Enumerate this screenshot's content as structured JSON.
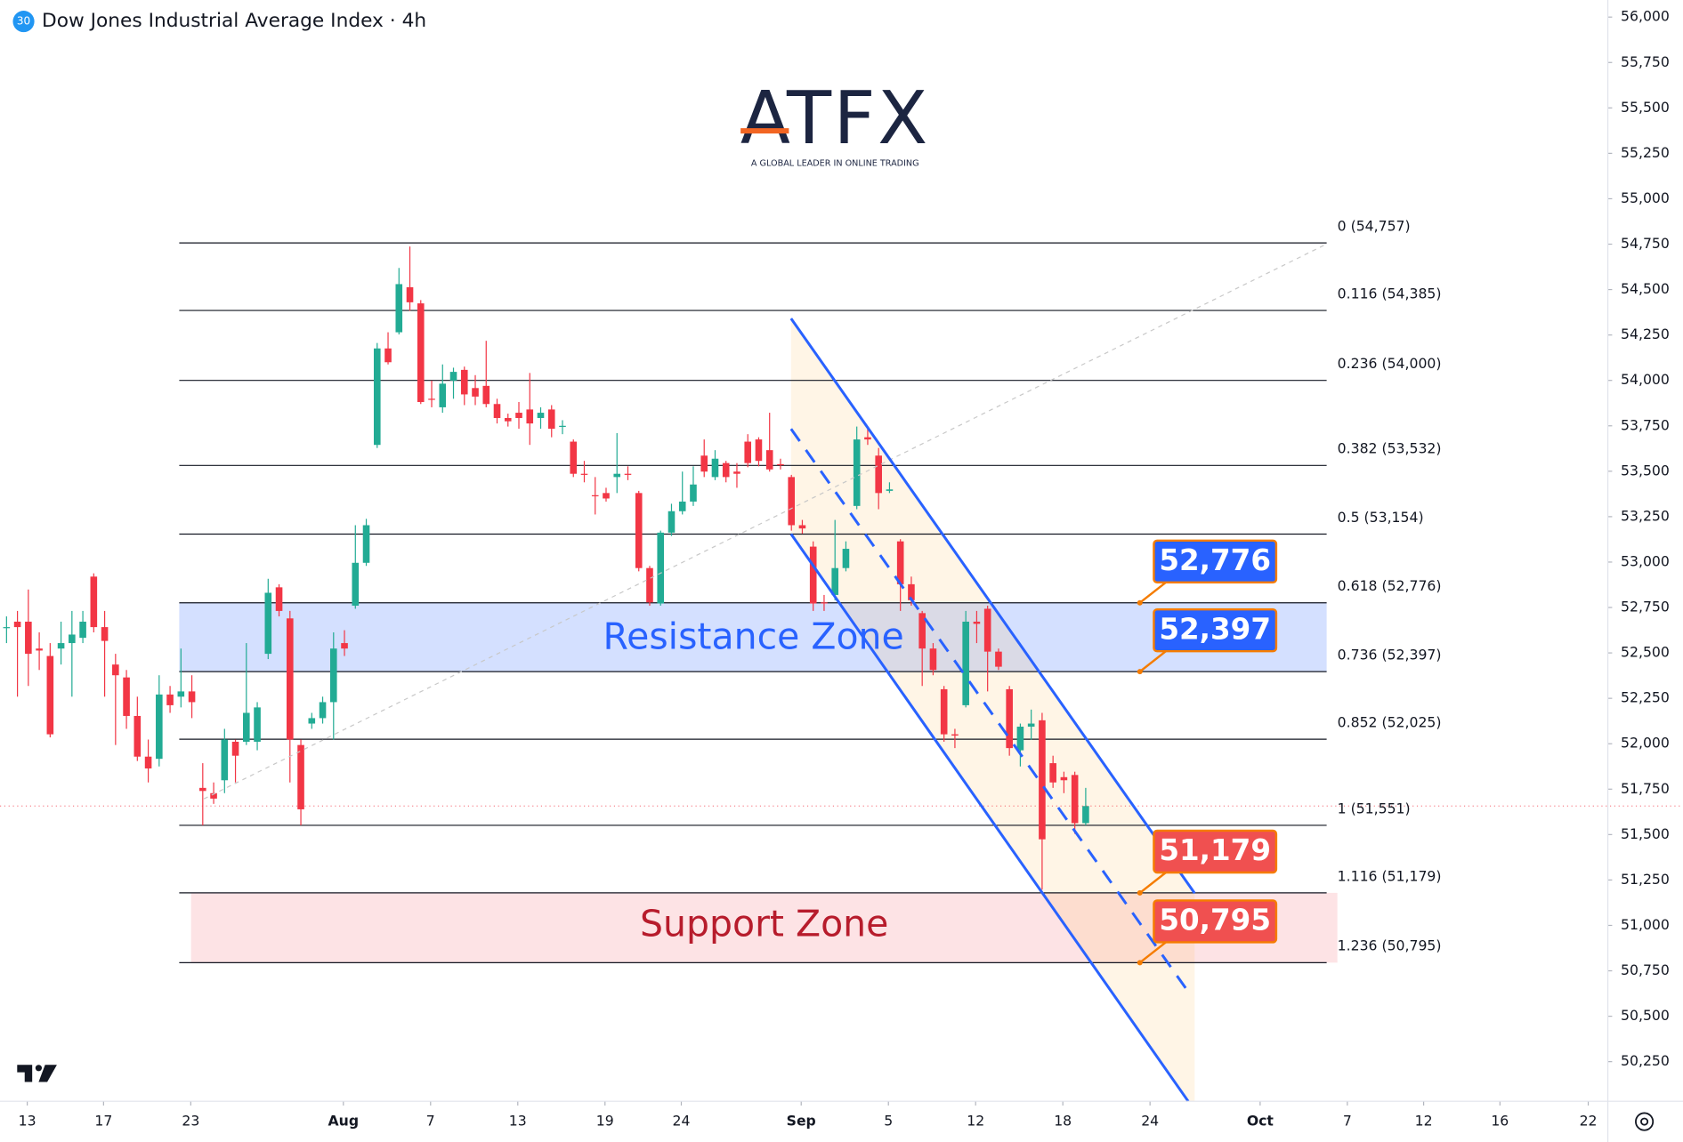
{
  "chart_data": {
    "type": "candlestick",
    "title": "Dow Jones Industrial Average Index · 4h",
    "symbol_badge": "30",
    "brand": "ATFX",
    "brand_tagline": "A GLOBAL LEADER IN ONLINE TRADING",
    "up_color": "#22ab94",
    "down_color": "#f23645",
    "open": [
      52642,
      52672,
      52672,
      52524,
      52483,
      52524,
      52554,
      52583,
      52920,
      52642,
      52436,
      52365,
      52153,
      51929,
      51917,
      52271,
      52259,
      52288,
      51757,
      51728,
      51799,
      52011,
      52011,
      52011,
      52495,
      52861,
      52690,
      51993,
      52111,
      52141,
      52229,
      52554,
      52760,
      52996,
      53645,
      54176,
      54265,
      54513,
      54424,
      53899,
      53852,
      53999,
      54058,
      53958,
      53970,
      53870,
      53793,
      53822,
      53840,
      53793,
      53840,
      53746,
      53663,
      53486,
      53368,
      53380,
      53468,
      53486,
      53380,
      52967,
      52772,
      53162,
      53280,
      53333,
      53586,
      53468,
      53545,
      53498,
      53663,
      53675,
      53616,
      53539,
      53468,
      53203,
      53085,
      52778,
      52819,
      52967,
      53309,
      53687,
      53586,
      53392,
      53114,
      52878,
      52719,
      52524,
      52300,
      52052,
      52212,
      52672,
      52743,
      52507,
      52300,
      51964,
      52094,
      52129,
      51893,
      51816,
      51828,
      51563
    ],
    "high": [
      52701,
      52731,
      52849,
      52613,
      52554,
      52672,
      52731,
      52731,
      52938,
      52731,
      52495,
      52406,
      52259,
      52023,
      52377,
      52318,
      52524,
      52377,
      51893,
      51787,
      52082,
      52023,
      52554,
      52229,
      52908,
      52878,
      52731,
      52023,
      52170,
      52259,
      52613,
      52625,
      53203,
      53238,
      54206,
      54265,
      54619,
      54737,
      54442,
      53999,
      54088,
      54070,
      54076,
      54029,
      54218,
      53899,
      53817,
      53881,
      54041,
      53852,
      53864,
      53781,
      53675,
      53557,
      53468,
      53409,
      53710,
      53527,
      53392,
      52979,
      53173,
      53321,
      53498,
      53527,
      53675,
      53616,
      53557,
      53545,
      53704,
      53687,
      53822,
      53569,
      53480,
      53232,
      53114,
      52819,
      53232,
      53114,
      53746,
      53734,
      53628,
      53439,
      53126,
      52920,
      52731,
      52554,
      52318,
      52082,
      52731,
      52731,
      52760,
      52524,
      52318,
      52111,
      52188,
      52170,
      51934,
      51846,
      51846,
      51757
    ],
    "low": [
      52554,
      52259,
      52318,
      52406,
      52035,
      52436,
      52259,
      52554,
      52613,
      52259,
      51993,
      52082,
      51905,
      51787,
      51875,
      52170,
      52200,
      52141,
      51551,
      51669,
      51728,
      51787,
      51993,
      51964,
      52466,
      52701,
      51787,
      51551,
      52082,
      52111,
      52023,
      52483,
      52743,
      52979,
      53628,
      54088,
      54253,
      54383,
      53870,
      53852,
      53822,
      53899,
      53864,
      53864,
      53852,
      53763,
      53746,
      53734,
      53645,
      53734,
      53687,
      53704,
      53468,
      53439,
      53262,
      53333,
      53380,
      53451,
      52949,
      52760,
      52760,
      53144,
      53262,
      53309,
      53468,
      53451,
      53439,
      53409,
      53522,
      53527,
      53498,
      53510,
      53173,
      53156,
      52731,
      52731,
      52790,
      52949,
      53291,
      53645,
      53291,
      53380,
      52731,
      52760,
      52318,
      52377,
      52011,
      51976,
      52200,
      52554,
      52288,
      52406,
      51934,
      51875,
      52023,
      51197,
      51757,
      51728,
      51504,
      51551
    ],
    "close": [
      52642,
      52642,
      52495,
      52513,
      52052,
      52554,
      52601,
      52672,
      52642,
      52566,
      52377,
      52153,
      51929,
      51864,
      52271,
      52212,
      52288,
      52229,
      51740,
      51698,
      52023,
      51934,
      52170,
      52200,
      52831,
      52731,
      52023,
      51639,
      52141,
      52229,
      52524,
      52524,
      52996,
      53203,
      54176,
      54100,
      54530,
      54430,
      53881,
      53893,
      53982,
      54047,
      53923,
      53911,
      53870,
      53793,
      53775,
      53793,
      53763,
      53822,
      53734,
      53750,
      53486,
      53480,
      53362,
      53350,
      53486,
      53480,
      52967,
      52778,
      53162,
      53280,
      53333,
      53427,
      53498,
      53569,
      53468,
      53486,
      53545,
      53557,
      53510,
      53533,
      53203,
      53185,
      52772,
      52775,
      52967,
      53073,
      53675,
      53675,
      53380,
      53400,
      52878,
      52790,
      52524,
      52406,
      52052,
      52045,
      52672,
      52660,
      52507,
      52424,
      51976,
      52094,
      52111,
      51474,
      51787,
      51799,
      51563,
      51657
    ],
    "ylim": [
      50032,
      56094
    ],
    "yticks": [
      {
        "value": 50250,
        "label": "50,250"
      },
      {
        "value": 50500,
        "label": "50,500"
      },
      {
        "value": 50750,
        "label": "50,750"
      },
      {
        "value": 51000,
        "label": "51,000"
      },
      {
        "value": 51250,
        "label": "51,250"
      },
      {
        "value": 51500,
        "label": "51,500"
      },
      {
        "value": 51750,
        "label": "51,750"
      },
      {
        "value": 52000,
        "label": "52,000"
      },
      {
        "value": 52250,
        "label": "52,250"
      },
      {
        "value": 52500,
        "label": "52,500"
      },
      {
        "value": 52750,
        "label": "52,750"
      },
      {
        "value": 53000,
        "label": "53,000"
      },
      {
        "value": 53250,
        "label": "53,250"
      },
      {
        "value": 53500,
        "label": "53,500"
      },
      {
        "value": 53750,
        "label": "53,750"
      },
      {
        "value": 54000,
        "label": "54,000"
      },
      {
        "value": 54250,
        "label": "54,250"
      },
      {
        "value": 54500,
        "label": "54,500"
      },
      {
        "value": 54750,
        "label": "54,750"
      },
      {
        "value": 55000,
        "label": "55,000"
      },
      {
        "value": 55250,
        "label": "55,250"
      },
      {
        "value": 55500,
        "label": "55,500"
      },
      {
        "value": 55750,
        "label": "55,750"
      },
      {
        "value": 56000,
        "label": "56,000"
      }
    ],
    "xlim": [
      -0.6,
      146.9
    ],
    "xticks": [
      {
        "value": 1.9,
        "label": "13"
      },
      {
        "value": 8.9,
        "label": "17"
      },
      {
        "value": 16.9,
        "label": "23"
      },
      {
        "value": 30.9,
        "label": "Aug"
      },
      {
        "value": 38.9,
        "label": "7"
      },
      {
        "value": 46.9,
        "label": "13"
      },
      {
        "value": 54.9,
        "label": "19"
      },
      {
        "value": 61.9,
        "label": "24"
      },
      {
        "value": 72.9,
        "label": "Sep"
      },
      {
        "value": 80.9,
        "label": "5"
      },
      {
        "value": 88.9,
        "label": "12"
      },
      {
        "value": 96.9,
        "label": "18"
      },
      {
        "value": 104.9,
        "label": "24"
      },
      {
        "value": 115.0,
        "label": "Oct"
      },
      {
        "value": 123.0,
        "label": "7"
      },
      {
        "value": 130.0,
        "label": "12"
      },
      {
        "value": 137.0,
        "label": "16"
      },
      {
        "value": 145.1,
        "label": "22"
      }
    ],
    "fib_levels": [
      {
        "value": 54757,
        "label": "0 (54,757)"
      },
      {
        "value": 54385,
        "label": "0.116 (54,385)"
      },
      {
        "value": 54000,
        "label": "0.236 (54,000)"
      },
      {
        "value": 53532,
        "label": "0.382 (53,532)"
      },
      {
        "value": 53154,
        "label": "0.5 (53,154)"
      },
      {
        "value": 52776,
        "label": "0.618 (52,776)"
      },
      {
        "value": 52397,
        "label": "0.736 (52,397)"
      },
      {
        "value": 52025,
        "label": "0.852 (52,025)"
      },
      {
        "value": 51551,
        "label": "1 (51,551)"
      },
      {
        "value": 51179,
        "label": "1.116 (51,179)"
      },
      {
        "value": 50795,
        "label": "1.236 (50,795)"
      }
    ],
    "zones": [
      {
        "label": "Resistance Zone",
        "color": "rgba(41,98,255,0.2)",
        "text_color": "#2962ff"
      },
      {
        "label": "Support Zone",
        "color": "rgba(242,54,69,0.14)",
        "text_color": "#b71c2c"
      }
    ],
    "callouts": [
      {
        "value": 52776,
        "label": "52,776",
        "color": "#2962ff"
      },
      {
        "value": 52397,
        "label": "52,397",
        "color": "#2962ff"
      },
      {
        "value": 51179,
        "label": "51,179",
        "color": "#f05050"
      },
      {
        "value": 50795,
        "label": "50,795",
        "color": "#f05050"
      }
    ]
  }
}
